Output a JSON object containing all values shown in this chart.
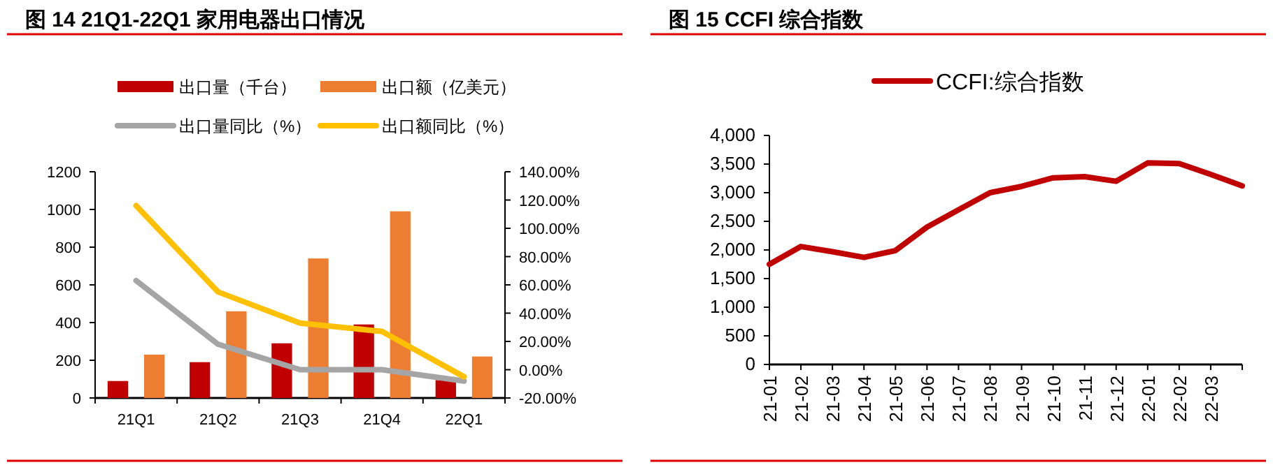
{
  "chart_data": [
    {
      "type": "bar",
      "title": "图 14 21Q1-22Q1 家用电器出口情况",
      "categories": [
        "21Q1",
        "21Q2",
        "21Q3",
        "21Q4",
        "22Q1"
      ],
      "series": [
        {
          "name": "出口量（千台）",
          "color": "#c00000",
          "values": [
            90,
            190,
            290,
            390,
            95
          ]
        },
        {
          "name": "出口额（亿美元）",
          "color": "#ed7d31",
          "values": [
            230,
            460,
            740,
            990,
            220
          ]
        },
        {
          "name": "出口量同比（%）",
          "type": "line",
          "axis": "y2",
          "color": "#a5a5a5",
          "values": [
            63,
            18,
            0,
            0,
            -8
          ]
        },
        {
          "name": "出口额同比（%）",
          "type": "line",
          "axis": "y2",
          "color": "#ffc000",
          "values": [
            116,
            55,
            33,
            27,
            -5
          ]
        }
      ],
      "ylim": [
        0,
        1200
      ],
      "yticks": [
        0,
        200,
        400,
        600,
        800,
        1000,
        1200
      ],
      "y2lim": [
        -20,
        140
      ],
      "y2ticks": [
        {
          "value": -20,
          "label": "-20.00%"
        },
        {
          "value": 0,
          "label": "0.00%"
        },
        {
          "value": 20,
          "label": "20.00%"
        },
        {
          "value": 40,
          "label": "40.00%"
        },
        {
          "value": 60,
          "label": "60.00%"
        },
        {
          "value": 80,
          "label": "80.00%"
        },
        {
          "value": 100,
          "label": "100.00%"
        },
        {
          "value": 120,
          "label": "120.00%"
        },
        {
          "value": 140,
          "label": "140.00%"
        }
      ],
      "grid": false,
      "legend": "top"
    },
    {
      "type": "line",
      "title": "图 15 CCFI 综合指数",
      "categories": [
        "21-01",
        "21-02",
        "21-03",
        "21-04",
        "21-05",
        "21-06",
        "21-07",
        "21-08",
        "21-09",
        "21-10",
        "21-11",
        "21-12",
        "22-01",
        "22-02",
        "22-03",
        null
      ],
      "series": [
        {
          "name": "CCFI:综合指数",
          "color": "#c00000",
          "values": [
            1750,
            2060,
            1970,
            1870,
            1990,
            2400,
            2700,
            3000,
            3110,
            3260,
            3280,
            3200,
            3520,
            3510,
            3320,
            3120
          ]
        }
      ],
      "ylim": [
        0,
        4000
      ],
      "yticks": [
        0,
        500,
        {
          "value": 1000,
          "label": "1,000"
        },
        {
          "value": 1500,
          "label": "1,500"
        },
        {
          "value": 2000,
          "label": "2,000"
        },
        {
          "value": 2500,
          "label": "2,500"
        },
        {
          "value": 3000,
          "label": "3,000"
        },
        {
          "value": 3500,
          "label": "3,500"
        },
        {
          "value": 4000,
          "label": "4,000"
        }
      ],
      "grid": false,
      "legend": "top",
      "marker": "none"
    }
  ]
}
